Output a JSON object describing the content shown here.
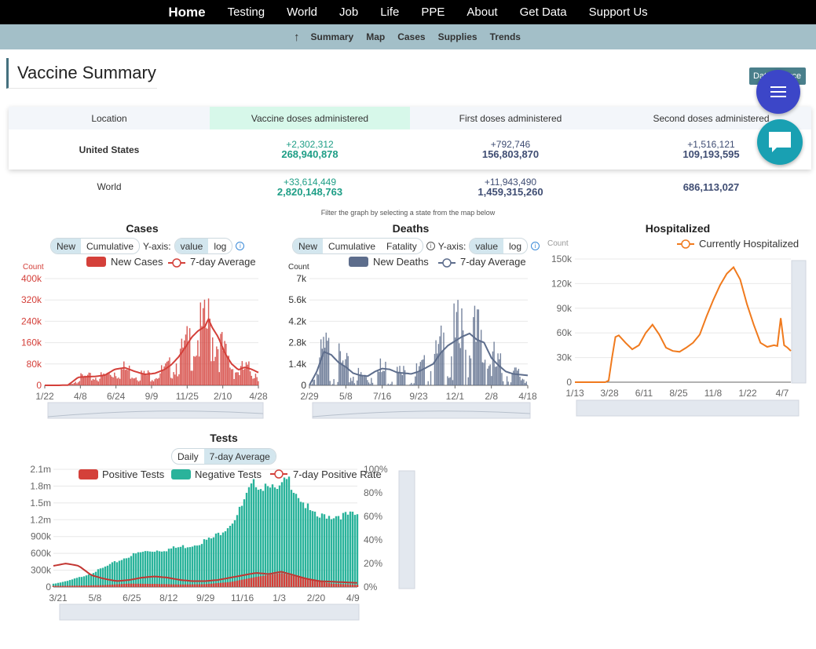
{
  "nav": {
    "items": [
      "Home",
      "Testing",
      "World",
      "Job",
      "Life",
      "PPE",
      "About",
      "Get Data",
      "Support Us"
    ]
  },
  "subnav": {
    "up": "↑",
    "items": [
      "Summary",
      "Map",
      "Cases",
      "Supplies",
      "Trends"
    ]
  },
  "page": {
    "title": "Vaccine Summary",
    "data_source_btn": "Data Source"
  },
  "table": {
    "headers": [
      "Location",
      "Vaccine doses administered",
      "First doses administered",
      "Second doses administered"
    ],
    "rows": [
      {
        "location": "United States",
        "vax_delta": "+2,302,312",
        "vax_total": "268,940,878",
        "first_delta": "+792,746",
        "first_total": "156,803,870",
        "second_delta": "+1,516,121",
        "second_total": "109,193,595"
      },
      {
        "location": "World",
        "vax_delta": "+33,614,449",
        "vax_total": "2,820,148,763",
        "first_delta": "+11,943,490",
        "first_total": "1,459,315,260",
        "second_delta": "",
        "second_total": "686,113,027"
      }
    ]
  },
  "filter_note": "Filter the graph by selecting a state from the map below",
  "colors": {
    "cases": "#d4403a",
    "deaths": "#5d6d8c",
    "hosp": "#f07a1d",
    "pos": "#d4403a",
    "neg": "#2ab39b",
    "nav": "#000000",
    "subnav": "#a3bfc8"
  },
  "controls": {
    "new": "New",
    "cumulative": "Cumulative",
    "fatality": "Fatality",
    "yaxis": "Y-axis:",
    "value": "value",
    "log": "log",
    "daily": "Daily",
    "seven_day": "7-day Average",
    "info": "i"
  },
  "chart_data": [
    {
      "type": "bar",
      "title": "Cases",
      "ylabel": "Count",
      "legend": [
        "New Cases",
        "7-day Average"
      ],
      "xticks": [
        "1/22",
        "4/8",
        "6/24",
        "9/9",
        "11/25",
        "2/10",
        "4/28"
      ],
      "yticks": [
        "0",
        "80k",
        "160k",
        "240k",
        "320k",
        "400k"
      ],
      "ylim": [
        0,
        400000
      ],
      "series": [
        {
          "name": "7-day Average",
          "x": [
            0,
            4,
            7,
            10,
            12,
            15,
            18,
            21,
            24,
            27,
            30,
            33,
            36,
            38,
            40,
            42,
            44,
            46,
            48,
            49,
            50,
            52,
            54,
            56,
            58,
            60,
            62,
            64
          ],
          "values": [
            0,
            0,
            1000,
            30000,
            32000,
            33000,
            38000,
            60000,
            66000,
            52000,
            41000,
            45000,
            60000,
            78000,
            105000,
            140000,
            180000,
            205000,
            220000,
            250000,
            220000,
            180000,
            120000,
            80000,
            58000,
            68000,
            60000,
            48000
          ]
        }
      ]
    },
    {
      "type": "bar",
      "title": "Deaths",
      "ylabel": "Count",
      "legend": [
        "New Deaths",
        "7-day Average"
      ],
      "xticks": [
        "2/29",
        "5/8",
        "7/16",
        "9/23",
        "12/1",
        "2/8",
        "4/18"
      ],
      "yticks": [
        "0",
        "1.4k",
        "2.8k",
        "4.2k",
        "5.6k",
        "7k"
      ],
      "ylim": [
        0,
        7000
      ],
      "series": [
        {
          "name": "7-day Average",
          "x": [
            0,
            2,
            4,
            6,
            8,
            10,
            12,
            14,
            16,
            18,
            20,
            22,
            24,
            26,
            28,
            30,
            32,
            34,
            36,
            38,
            40,
            42,
            44,
            46,
            48,
            50,
            52,
            54,
            56,
            58,
            60
          ],
          "values": [
            0,
            900,
            2200,
            2000,
            1500,
            1200,
            800,
            650,
            600,
            900,
            1100,
            1050,
            850,
            800,
            750,
            900,
            1150,
            1400,
            2100,
            2600,
            2900,
            3200,
            3400,
            3000,
            2800,
            1800,
            1300,
            900,
            750,
            700,
            650
          ]
        }
      ]
    },
    {
      "type": "line",
      "title": "Hospitalized",
      "ylabel": "Count",
      "legend": [
        "Currently Hospitalized"
      ],
      "xticks": [
        "1/13",
        "3/28",
        "6/11",
        "8/25",
        "11/8",
        "1/22",
        "4/7"
      ],
      "yticks": [
        "0",
        "30k",
        "60k",
        "90k",
        "120k",
        "150k"
      ],
      "ylim": [
        0,
        150000
      ],
      "series": [
        {
          "name": "Currently Hospitalized",
          "x": [
            0,
            5,
            9,
            10,
            11,
            12,
            13,
            15,
            17,
            19,
            21,
            23,
            25,
            27,
            29,
            31,
            33,
            35,
            37,
            39,
            41,
            43,
            45,
            47,
            49,
            51,
            53,
            55,
            57,
            59,
            60,
            61,
            62,
            63,
            64
          ],
          "values": [
            0,
            0,
            0,
            2000,
            30000,
            55000,
            57000,
            48000,
            40000,
            45000,
            60000,
            70000,
            58000,
            42000,
            38000,
            37000,
            42000,
            48000,
            58000,
            80000,
            100000,
            118000,
            132000,
            140000,
            125000,
            95000,
            70000,
            48000,
            43000,
            45000,
            44000,
            78000,
            45000,
            42000,
            38000
          ]
        }
      ]
    },
    {
      "type": "bar",
      "title": "Tests",
      "ylabel": "",
      "legend": [
        "Positive Tests",
        "Negative Tests",
        "7-day Positive Rate"
      ],
      "xticks": [
        "3/21",
        "5/8",
        "6/25",
        "8/12",
        "9/29",
        "11/16",
        "1/3",
        "2/20",
        "4/9"
      ],
      "yticks": [
        "0",
        "300k",
        "600k",
        "900k",
        "1.2m",
        "1.5m",
        "1.8m",
        "2.1m"
      ],
      "y2ticks": [
        "0%",
        "20%",
        "40%",
        "60%",
        "80%",
        "100%"
      ],
      "ylim": [
        0,
        2100000
      ],
      "series": [
        {
          "name": "Negative Tests",
          "x": [
            0,
            4,
            8,
            12,
            16,
            20,
            24,
            28,
            32,
            36,
            40,
            44,
            48,
            50,
            52,
            54,
            56,
            58,
            60,
            62,
            64,
            66,
            68,
            70,
            72,
            74,
            76,
            78,
            80,
            82,
            84,
            86,
            88,
            90,
            92,
            94,
            96
          ],
          "values": [
            60000,
            100000,
            170000,
            250000,
            350000,
            460000,
            560000,
            630000,
            660000,
            680000,
            720000,
            760000,
            840000,
            870000,
            950000,
            1050000,
            1150000,
            1300000,
            1500000,
            1750000,
            1900000,
            1800000,
            1950000,
            1700000,
            1800000,
            1950000,
            1800000,
            1600000,
            1450000,
            1300000,
            1250000,
            1300000,
            1280000,
            1300000,
            1290000,
            1300000,
            1280000
          ]
        },
        {
          "name": "Positive Tests",
          "x": [
            0,
            8,
            16,
            24,
            32,
            40,
            48,
            56,
            64,
            72,
            80,
            88,
            96
          ],
          "values": [
            20000,
            25000,
            35000,
            60000,
            55000,
            45000,
            50000,
            90000,
            180000,
            250000,
            140000,
            60000,
            40000
          ]
        },
        {
          "name": "7-day Positive Rate",
          "x": [
            0,
            4,
            8,
            12,
            16,
            20,
            24,
            28,
            32,
            36,
            40,
            44,
            48,
            52,
            56,
            60,
            64,
            68,
            72,
            76,
            80,
            84,
            88,
            92,
            96
          ],
          "values": [
            0.18,
            0.2,
            0.18,
            0.1,
            0.07,
            0.05,
            0.06,
            0.08,
            0.09,
            0.08,
            0.06,
            0.05,
            0.05,
            0.06,
            0.08,
            0.1,
            0.12,
            0.11,
            0.13,
            0.1,
            0.07,
            0.05,
            0.045,
            0.04,
            0.035
          ]
        }
      ]
    }
  ]
}
